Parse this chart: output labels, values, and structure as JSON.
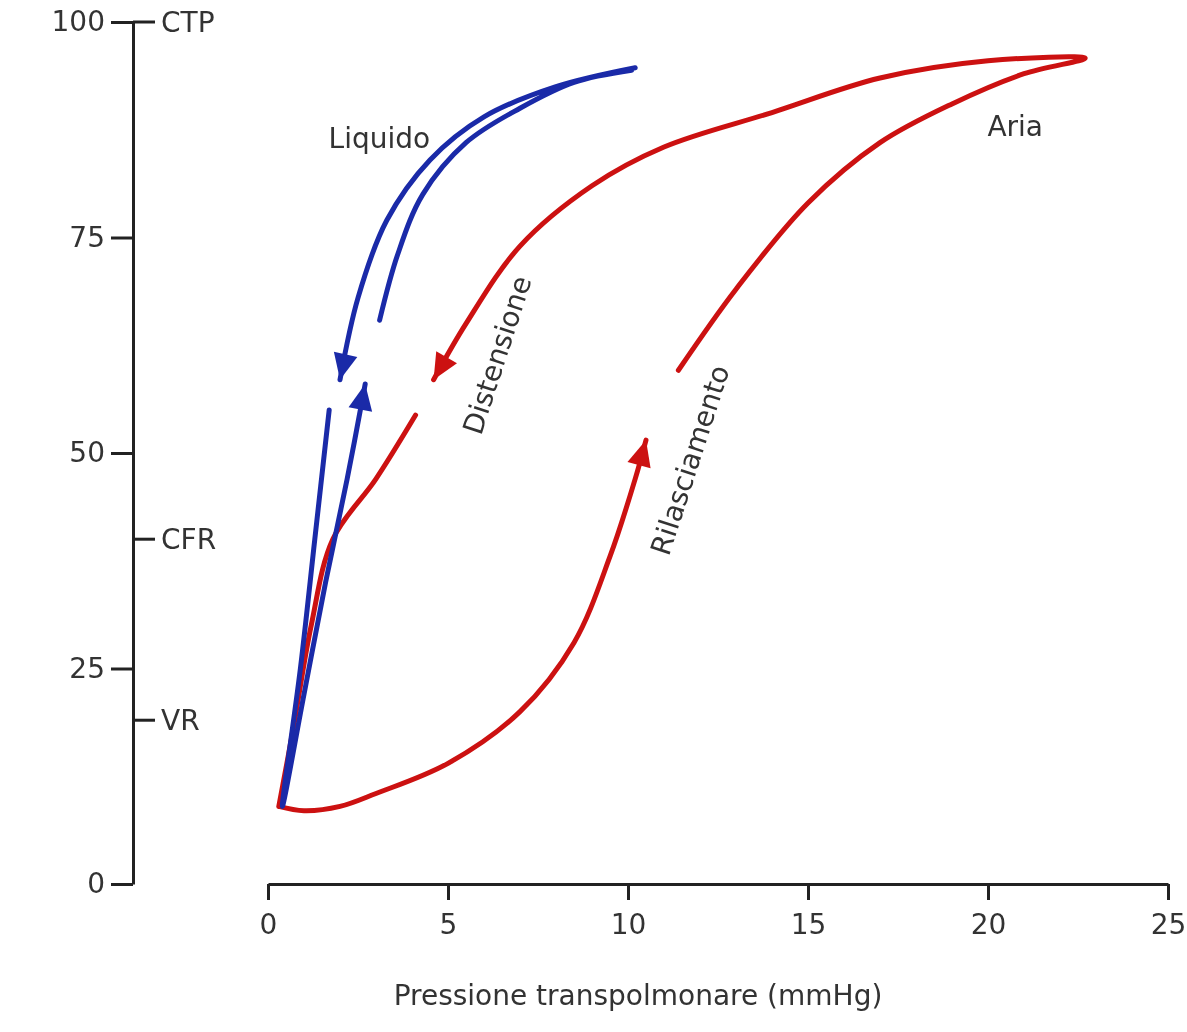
{
  "chart_data": {
    "type": "line",
    "xlabel": "Pressione transpolmonare (mmHg)",
    "xlim": [
      0,
      25
    ],
    "xticks": [
      0,
      5,
      10,
      15,
      20,
      25
    ],
    "ylim": [
      0,
      100
    ],
    "yticks": [
      0,
      25,
      50,
      75,
      100
    ],
    "ref_lines": [
      {
        "axis": "y",
        "value": 100,
        "label": "CTP"
      },
      {
        "axis": "y",
        "value": 40,
        "label": "CFR"
      },
      {
        "axis": "y",
        "value": 19,
        "label": "VR"
      }
    ],
    "grid": false,
    "legend": false,
    "marker": "none",
    "line_style": "solid",
    "annotations": [
      "Distensione",
      "Rilasciamento"
    ],
    "series": [
      {
        "name": "Aria",
        "color": "#cc1111",
        "x": [
          0.3,
          1,
          2,
          3,
          5,
          7,
          8.5,
          9.5,
          10.2,
          10.5,
          null,
          11.4,
          13,
          15,
          17,
          19,
          21,
          22.7,
          20,
          17,
          14,
          11,
          9,
          7,
          5.5,
          4.6,
          null,
          4.1,
          3,
          1.8,
          1.2,
          0.7,
          0.3
        ],
        "values": [
          9,
          8.5,
          9,
          10.5,
          14,
          20,
          28,
          38,
          47,
          51.5,
          null,
          59.6,
          69,
          79,
          86,
          90.5,
          94,
          95.8,
          95.5,
          93.5,
          89.5,
          85.5,
          81,
          74,
          65,
          58.5,
          null,
          54.4,
          47,
          40,
          30,
          18,
          9
        ]
      },
      {
        "name": "Liquido",
        "color": "#1a2aa8",
        "x": [
          10.2,
          8,
          6,
          4.5,
          3.3,
          2.5,
          2.0,
          null,
          1.7,
          1.3,
          0.9,
          0.4,
          1.0,
          1.6,
          2.2,
          2.7,
          null,
          3.1,
          3.6,
          4.3,
          5.5,
          7,
          8.5,
          10.1
        ],
        "values": [
          94.7,
          92.5,
          89,
          84,
          77,
          68,
          58.5,
          null,
          55,
          40,
          25,
          9,
          22,
          35,
          47,
          58,
          null,
          65.4,
          73,
          80,
          86,
          90,
          93,
          94.4
        ]
      }
    ]
  }
}
